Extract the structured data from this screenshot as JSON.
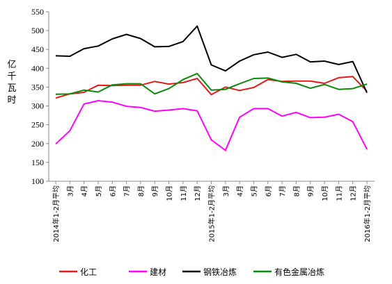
{
  "chart_data": {
    "type": "line",
    "title": "",
    "xlabel": "",
    "ylabel": "亿千瓦时",
    "ylim": [
      100,
      550
    ],
    "yticks": [
      100,
      150,
      200,
      250,
      300,
      350,
      400,
      450,
      500,
      550
    ],
    "grid": false,
    "legend_position": "bottom",
    "categories": [
      "2014年1-2月平均",
      "3月",
      "4月",
      "5月",
      "6月",
      "7月",
      "8月",
      "9月",
      "10月",
      "11月",
      "12月",
      "2015年1-2月平均",
      "3月",
      "4月",
      "5月",
      "6月",
      "7月",
      "8月",
      "9月",
      "10月",
      "11月",
      "12月",
      "2016年1-2月平均"
    ],
    "series": [
      {
        "name": "化工",
        "color": "#e31a1c",
        "values": [
          321,
          332,
          336,
          355,
          354,
          355,
          355,
          365,
          358,
          362,
          373,
          330,
          350,
          341,
          349,
          370,
          365,
          366,
          366,
          360,
          375,
          378,
          339
        ]
      },
      {
        "name": "建材",
        "color": "#ff00ff",
        "values": [
          199,
          234,
          305,
          314,
          310,
          299,
          296,
          286,
          289,
          293,
          287,
          210,
          182,
          270,
          293,
          293,
          273,
          283,
          269,
          270,
          278,
          258,
          185
        ]
      },
      {
        "name": "钢铁冶炼",
        "color": "#000000",
        "values": [
          433,
          432,
          452,
          459,
          478,
          490,
          479,
          457,
          458,
          471,
          512,
          409,
          393,
          419,
          436,
          443,
          429,
          437,
          417,
          419,
          410,
          418,
          335
        ]
      },
      {
        "name": "有色金属冶炼",
        "color": "#0a8a0a",
        "values": [
          331,
          332,
          342,
          337,
          356,
          359,
          359,
          332,
          346,
          370,
          386,
          342,
          344,
          359,
          373,
          374,
          364,
          360,
          347,
          357,
          344,
          346,
          358
        ]
      }
    ]
  }
}
